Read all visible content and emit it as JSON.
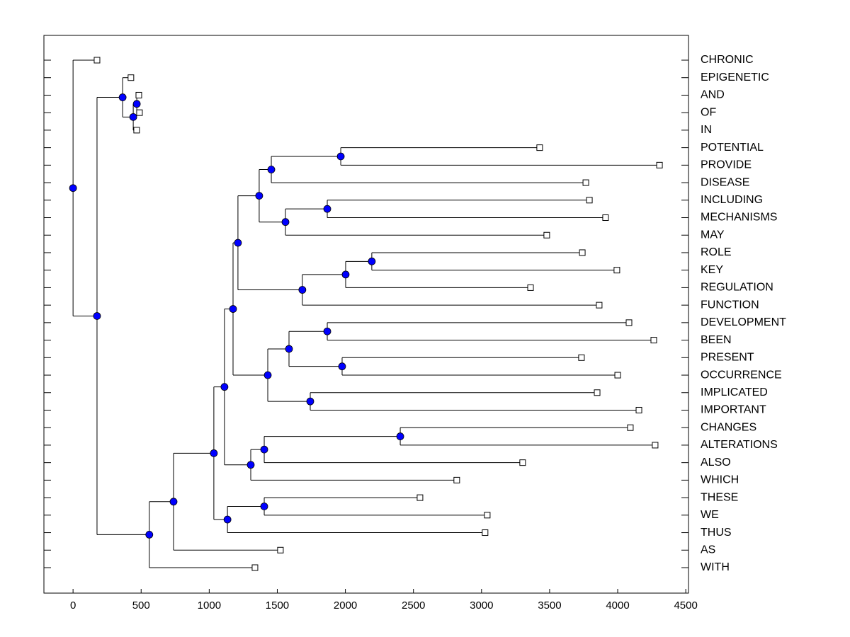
{
  "chart_data": {
    "type": "dendrogram",
    "categories": [
      "CHRONIC",
      "EPIGENETIC",
      "AND",
      "OF",
      "IN",
      "POTENTIAL",
      "PROVIDE",
      "DISEASE",
      "INCLUDING",
      "MECHANISMS",
      "MAY",
      "ROLE",
      "KEY",
      "REGULATION",
      "FUNCTION",
      "DEVELOPMENT",
      "BEEN",
      "PRESENT",
      "OCCURRENCE",
      "IMPLICATED",
      "IMPORTANT",
      "CHANGES",
      "ALTERATIONS",
      "ALSO",
      "WHICH",
      "THESE",
      "WE",
      "THUS",
      "AS",
      "WITH"
    ],
    "values": [
      176,
      425,
      483,
      488,
      467,
      3427,
      4307,
      3766,
      3792,
      3911,
      3479,
      3740,
      3994,
      3360,
      3864,
      4083,
      4265,
      3734,
      4000,
      3849,
      4156,
      4093,
      4275,
      3302,
      2818,
      2548,
      3042,
      3026,
      1523,
      1336
    ],
    "nodes": [
      {
        "x": 0,
        "children": [
          {
            "leaf": 0
          },
          {
            "node": 1
          }
        ]
      },
      {
        "x": 176,
        "children": [
          {
            "node": 2
          },
          {
            "node": 5
          }
        ]
      },
      {
        "x": 364,
        "children": [
          {
            "leaf": 1
          },
          {
            "node": 3
          }
        ]
      },
      {
        "x": 442,
        "children": [
          {
            "node": 4
          },
          {
            "leaf": 4
          }
        ]
      },
      {
        "x": 468,
        "children": [
          {
            "leaf": 2
          },
          {
            "leaf": 3
          }
        ]
      },
      {
        "x": 560,
        "children": [
          {
            "node": 6
          },
          {
            "leaf": 29
          }
        ]
      },
      {
        "x": 738,
        "children": [
          {
            "node": 7
          },
          {
            "leaf": 28
          }
        ]
      },
      {
        "x": 1034,
        "children": [
          {
            "node": 8
          },
          {
            "node": 9
          }
        ]
      },
      {
        "x": 1112,
        "children": [
          {
            "node": 11
          },
          {
            "node": 15
          }
        ]
      },
      {
        "x": 1134,
        "children": [
          {
            "node": 10
          },
          {
            "leaf": 27
          }
        ]
      },
      {
        "x": 1404,
        "children": [
          {
            "leaf": 25
          },
          {
            "leaf": 26
          }
        ]
      },
      {
        "x": 1175,
        "children": [
          {
            "node": 12
          },
          {
            "node": 19
          }
        ]
      },
      {
        "x": 1211,
        "children": [
          {
            "node": 13
          },
          {
            "node": 16
          }
        ]
      },
      {
        "x": 1367,
        "children": [
          {
            "node": 14
          },
          {
            "node": 22
          }
        ]
      },
      {
        "x": 1456,
        "children": [
          {
            "node": 23
          },
          {
            "leaf": 7
          }
        ]
      },
      {
        "x": 1305,
        "children": [
          {
            "node": 17
          },
          {
            "leaf": 24
          }
        ]
      },
      {
        "x": 1684,
        "children": [
          {
            "node": 18
          },
          {
            "leaf": 14
          }
        ]
      },
      {
        "x": 1404,
        "children": [
          {
            "node": 20
          },
          {
            "leaf": 23
          }
        ]
      },
      {
        "x": 2002,
        "children": [
          {
            "node": 21
          },
          {
            "leaf": 13
          }
        ]
      },
      {
        "x": 1430,
        "children": [
          {
            "node": 24
          },
          {
            "node": 25
          }
        ]
      },
      {
        "x": 2403,
        "children": [
          {
            "leaf": 21
          },
          {
            "leaf": 22
          }
        ]
      },
      {
        "x": 2194,
        "children": [
          {
            "leaf": 11
          },
          {
            "leaf": 12
          }
        ]
      },
      {
        "x": 1560,
        "children": [
          {
            "node": 26
          },
          {
            "leaf": 10
          }
        ]
      },
      {
        "x": 1966,
        "children": [
          {
            "leaf": 5
          },
          {
            "leaf": 6
          }
        ]
      },
      {
        "x": 1586,
        "children": [
          {
            "node": 27
          },
          {
            "node": 28
          }
        ]
      },
      {
        "x": 1742,
        "children": [
          {
            "leaf": 19
          },
          {
            "leaf": 20
          }
        ]
      },
      {
        "x": 1867,
        "children": [
          {
            "leaf": 8
          },
          {
            "leaf": 9
          }
        ]
      },
      {
        "x": 1867,
        "children": [
          {
            "leaf": 15
          },
          {
            "leaf": 16
          }
        ]
      },
      {
        "x": 1976,
        "children": [
          {
            "leaf": 17
          },
          {
            "leaf": 18
          }
        ]
      }
    ],
    "node_color": "#0000ff",
    "xlim": [
      -214,
      4520
    ],
    "xticks": [
      0,
      500,
      1000,
      1500,
      2000,
      2500,
      3000,
      3500,
      4000,
      4500
    ]
  }
}
